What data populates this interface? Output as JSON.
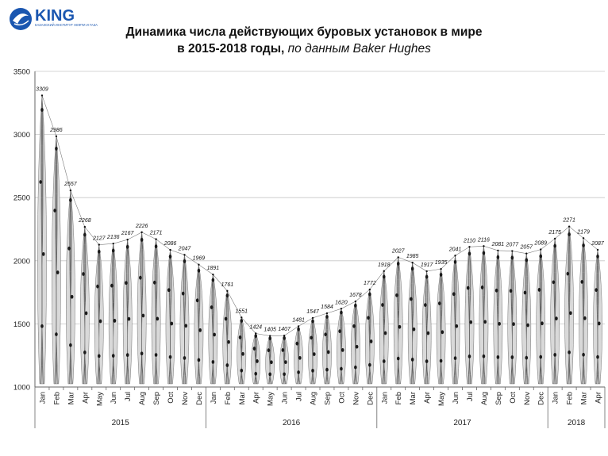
{
  "logo": {
    "name": "KING",
    "tagline": "КАЗАХСКИЙ ИНСТИТУТ НЕФТИ И ГАЗА",
    "color": "#1a56b0"
  },
  "title": {
    "line1": "Динамика числа действующих буровых установок в мире",
    "line2_bold": "в 2015-2018 годы,",
    "line2_italic": "по данным Baker Hughes"
  },
  "chart_data": {
    "type": "line",
    "title": "Динамика числа действующих буровых установок в мире в 2015-2018 годы, по данным Baker Hughes",
    "ylim": [
      1000,
      3500
    ],
    "yticks": [
      1000,
      1500,
      2000,
      2500,
      3000,
      3500
    ],
    "grid": true,
    "categories": [
      "Jan",
      "Feb",
      "Mar",
      "Apr",
      "May",
      "Jun",
      "Jul",
      "Aug",
      "Sep",
      "Oct",
      "Nov",
      "Dec",
      "Jan",
      "Feb",
      "Mar",
      "Apr",
      "May",
      "Jun",
      "Jul",
      "Aug",
      "Sep",
      "Oct",
      "Nov",
      "Dec",
      "Jan",
      "Feb",
      "Mar",
      "Apr",
      "May",
      "Jun",
      "Jul",
      "Aug",
      "Sep",
      "Oct",
      "Nov",
      "Dec",
      "Jan",
      "Feb",
      "Mar",
      "Apr"
    ],
    "years": [
      {
        "label": "2015",
        "count": 12
      },
      {
        "label": "2016",
        "count": 12
      },
      {
        "label": "2017",
        "count": 12
      },
      {
        "label": "2018",
        "count": 4
      }
    ],
    "series": [
      {
        "values": [
          3309,
          2986,
          2557,
          2268,
          2127,
          2136,
          2167,
          2226,
          2171,
          2086,
          2047,
          1969,
          1891,
          1761,
          1551,
          1424,
          1405,
          1407,
          1481,
          1547,
          1584,
          1620,
          1678,
          1772,
          1918,
          2027,
          1985,
          1917,
          1935,
          2041,
          2110,
          2116,
          2081,
          2077,
          2057,
          2089,
          2175,
          2271,
          2179,
          2087
        ]
      }
    ],
    "colors": {
      "line": "#111111",
      "grid": "#c8c8c8",
      "axis": "#666666"
    }
  }
}
